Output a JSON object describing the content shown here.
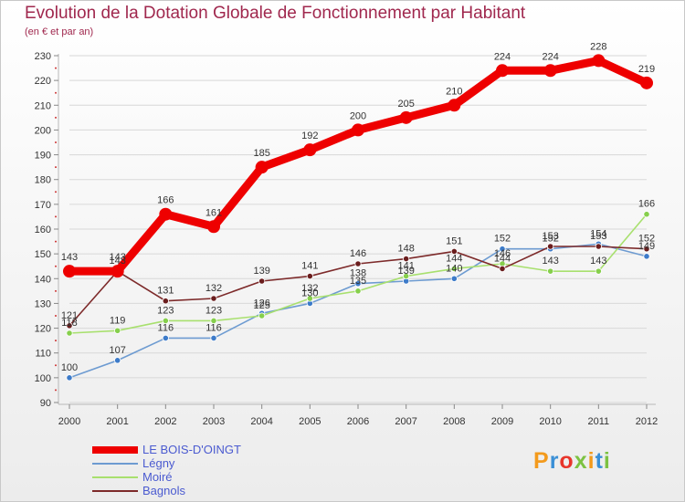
{
  "chart_data": {
    "type": "line",
    "title": "Evolution de la Dotation Globale de Fonctionnement par Habitant",
    "subtitle": "(en € et par an)",
    "xlabel": "",
    "ylabel": "",
    "categories": [
      "2000",
      "2001",
      "2002",
      "2003",
      "2004",
      "2005",
      "2006",
      "2007",
      "2008",
      "2009",
      "2010",
      "2011",
      "2012"
    ],
    "ylim": [
      90,
      230
    ],
    "yticks": [
      90,
      100,
      110,
      120,
      130,
      140,
      150,
      160,
      170,
      180,
      190,
      200,
      210,
      220,
      230
    ],
    "grid": "horizontal",
    "legend_position": "bottom-left",
    "series": [
      {
        "name": "LE BOIS-D'OINGT",
        "color": "#ee0000",
        "values": [
          143,
          143,
          166,
          161,
          185,
          192,
          200,
          205,
          210,
          224,
          224,
          228,
          219
        ]
      },
      {
        "name": "Légny",
        "color": "#6d9bd1",
        "marker": "#3d7bc9",
        "values": [
          100,
          107,
          116,
          116,
          126,
          130,
          138,
          139,
          140,
          152,
          152,
          154,
          149
        ]
      },
      {
        "name": "Moiré",
        "color": "#a8e06e",
        "marker": "#86cf4c",
        "values": [
          118,
          119,
          123,
          123,
          125,
          132,
          135,
          141,
          144,
          146,
          143,
          143,
          166
        ]
      },
      {
        "name": "Bagnols",
        "color": "#7d2a2a",
        "marker": "#6b1e1e",
        "values": [
          121,
          143,
          131,
          132,
          139,
          141,
          146,
          148,
          151,
          144,
          153,
          153,
          152
        ]
      }
    ]
  },
  "logo": {
    "text": "Proxiti",
    "letters": [
      "P",
      "r",
      "o",
      "x",
      "i",
      "t",
      "i"
    ],
    "colors": [
      "#f39a1c",
      "#3a8fd6",
      "#e8352b",
      "#7cc242",
      "#f39a1c",
      "#3a8fd6",
      "#7cc242"
    ]
  }
}
